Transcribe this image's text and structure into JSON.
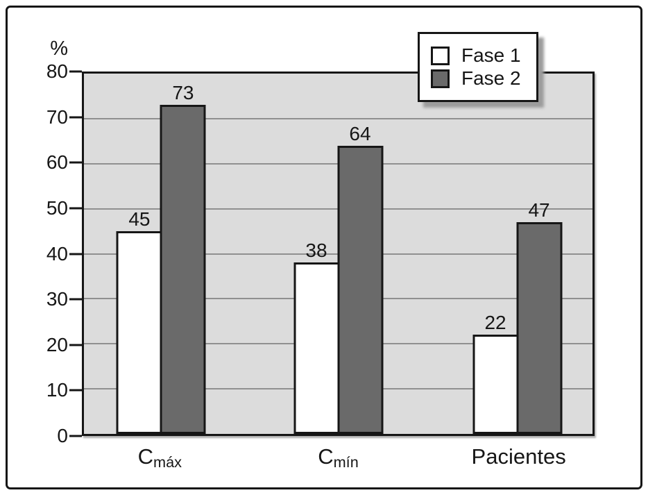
{
  "chart_data": {
    "type": "bar",
    "title": "",
    "xlabel": "",
    "ylabel": "%",
    "ylim": [
      0,
      80
    ],
    "yticks": [
      0,
      10,
      20,
      30,
      40,
      50,
      60,
      70,
      80
    ],
    "grid": "horizontal",
    "legend_position": "top-right",
    "categories": [
      {
        "base": "C",
        "sub": "máx"
      },
      {
        "base": "C",
        "sub": "mín"
      },
      {
        "base": "Pacientes",
        "sub": ""
      }
    ],
    "series": [
      {
        "name": "Fase 1",
        "color": "#ffffff",
        "values": [
          45,
          38,
          22
        ]
      },
      {
        "name": "Fase 2",
        "color": "#6a6a6a",
        "values": [
          73,
          64,
          47
        ]
      }
    ],
    "group_centers_pct": [
      15.2,
      50.0,
      85.2
    ],
    "colors": {
      "plot_background": "#dcdcdc",
      "gridline": "#909090",
      "axis": "#161616",
      "text": "#161616",
      "fase1_fill": "#ffffff",
      "fase2_fill": "#6a6a6a"
    }
  }
}
